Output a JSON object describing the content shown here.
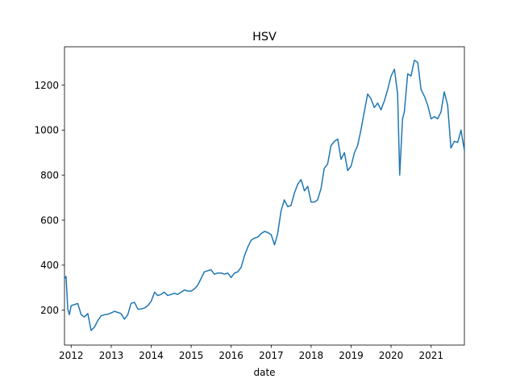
{
  "chart_data": {
    "type": "line",
    "title": "HSV",
    "xlabel": "date",
    "ylabel": "",
    "xlim": [
      "2011-11-01",
      "2021-11-01"
    ],
    "ylim": [
      45,
      1370
    ],
    "grid": false,
    "line_color": "#1f77b4",
    "x_ticks": [
      "2012",
      "2013",
      "2014",
      "2015",
      "2016",
      "2017",
      "2018",
      "2019",
      "2020",
      "2021"
    ],
    "y_ticks": [
      200,
      400,
      600,
      800,
      1000,
      1200
    ],
    "series": [
      {
        "name": "",
        "points": [
          [
            "2011-11-01",
            340
          ],
          [
            "2011-11-15",
            350
          ],
          [
            "2011-12-01",
            205
          ],
          [
            "2011-12-15",
            180
          ],
          [
            "2012-01-01",
            220
          ],
          [
            "2012-02-01",
            225
          ],
          [
            "2012-03-01",
            230
          ],
          [
            "2012-04-01",
            180
          ],
          [
            "2012-05-01",
            170
          ],
          [
            "2012-06-01",
            185
          ],
          [
            "2012-07-01",
            110
          ],
          [
            "2012-08-01",
            125
          ],
          [
            "2012-09-01",
            155
          ],
          [
            "2012-10-01",
            175
          ],
          [
            "2012-11-01",
            180
          ],
          [
            "2012-12-01",
            182
          ],
          [
            "2013-01-01",
            188
          ],
          [
            "2013-02-01",
            195
          ],
          [
            "2013-03-01",
            190
          ],
          [
            "2013-04-01",
            185
          ],
          [
            "2013-05-01",
            160
          ],
          [
            "2013-06-01",
            180
          ],
          [
            "2013-07-01",
            230
          ],
          [
            "2013-08-01",
            235
          ],
          [
            "2013-09-01",
            205
          ],
          [
            "2013-10-01",
            205
          ],
          [
            "2013-11-01",
            210
          ],
          [
            "2013-12-01",
            220
          ],
          [
            "2014-01-01",
            240
          ],
          [
            "2014-02-01",
            280
          ],
          [
            "2014-03-01",
            265
          ],
          [
            "2014-04-01",
            270
          ],
          [
            "2014-05-01",
            280
          ],
          [
            "2014-06-01",
            265
          ],
          [
            "2014-07-01",
            270
          ],
          [
            "2014-08-01",
            275
          ],
          [
            "2014-09-01",
            270
          ],
          [
            "2014-10-01",
            280
          ],
          [
            "2014-11-01",
            290
          ],
          [
            "2014-12-01",
            285
          ],
          [
            "2015-01-01",
            285
          ],
          [
            "2015-02-01",
            295
          ],
          [
            "2015-03-01",
            310
          ],
          [
            "2015-04-01",
            340
          ],
          [
            "2015-05-01",
            370
          ],
          [
            "2015-06-01",
            375
          ],
          [
            "2015-07-01",
            380
          ],
          [
            "2015-08-01",
            360
          ],
          [
            "2015-09-01",
            365
          ],
          [
            "2015-10-01",
            365
          ],
          [
            "2015-11-01",
            360
          ],
          [
            "2015-12-01",
            365
          ],
          [
            "2016-01-01",
            345
          ],
          [
            "2016-02-01",
            365
          ],
          [
            "2016-03-01",
            370
          ],
          [
            "2016-04-01",
            390
          ],
          [
            "2016-05-01",
            440
          ],
          [
            "2016-06-01",
            480
          ],
          [
            "2016-07-01",
            510
          ],
          [
            "2016-08-01",
            520
          ],
          [
            "2016-09-01",
            525
          ],
          [
            "2016-10-01",
            540
          ],
          [
            "2016-11-01",
            550
          ],
          [
            "2016-12-01",
            545
          ],
          [
            "2017-01-01",
            535
          ],
          [
            "2017-02-01",
            490
          ],
          [
            "2017-03-01",
            540
          ],
          [
            "2017-04-01",
            640
          ],
          [
            "2017-05-01",
            690
          ],
          [
            "2017-06-01",
            660
          ],
          [
            "2017-07-01",
            665
          ],
          [
            "2017-08-01",
            720
          ],
          [
            "2017-09-01",
            760
          ],
          [
            "2017-10-01",
            780
          ],
          [
            "2017-11-01",
            730
          ],
          [
            "2017-12-01",
            750
          ],
          [
            "2018-01-01",
            680
          ],
          [
            "2018-02-01",
            680
          ],
          [
            "2018-03-01",
            690
          ],
          [
            "2018-04-01",
            740
          ],
          [
            "2018-05-01",
            830
          ],
          [
            "2018-06-01",
            850
          ],
          [
            "2018-07-01",
            930
          ],
          [
            "2018-08-01",
            950
          ],
          [
            "2018-09-01",
            960
          ],
          [
            "2018-10-01",
            870
          ],
          [
            "2018-11-01",
            900
          ],
          [
            "2018-12-01",
            820
          ],
          [
            "2019-01-01",
            840
          ],
          [
            "2019-02-01",
            900
          ],
          [
            "2019-03-01",
            930
          ],
          [
            "2019-04-01",
            1000
          ],
          [
            "2019-05-01",
            1080
          ],
          [
            "2019-06-01",
            1160
          ],
          [
            "2019-07-01",
            1140
          ],
          [
            "2019-08-01",
            1100
          ],
          [
            "2019-09-01",
            1120
          ],
          [
            "2019-10-01",
            1090
          ],
          [
            "2019-11-01",
            1130
          ],
          [
            "2019-12-01",
            1180
          ],
          [
            "2020-01-01",
            1240
          ],
          [
            "2020-02-01",
            1270
          ],
          [
            "2020-03-01",
            1160
          ],
          [
            "2020-03-20",
            800
          ],
          [
            "2020-04-15",
            1050
          ],
          [
            "2020-05-01",
            1080
          ],
          [
            "2020-06-01",
            1250
          ],
          [
            "2020-07-01",
            1240
          ],
          [
            "2020-08-01",
            1310
          ],
          [
            "2020-09-01",
            1300
          ],
          [
            "2020-10-01",
            1180
          ],
          [
            "2020-11-01",
            1150
          ],
          [
            "2020-12-01",
            1110
          ],
          [
            "2021-01-01",
            1050
          ],
          [
            "2021-02-01",
            1060
          ],
          [
            "2021-03-01",
            1050
          ],
          [
            "2021-04-01",
            1080
          ],
          [
            "2021-05-01",
            1170
          ],
          [
            "2021-06-01",
            1110
          ],
          [
            "2021-07-01",
            920
          ],
          [
            "2021-08-01",
            950
          ],
          [
            "2021-09-01",
            945
          ],
          [
            "2021-10-01",
            1000
          ],
          [
            "2021-11-01",
            910
          ]
        ]
      }
    ]
  }
}
